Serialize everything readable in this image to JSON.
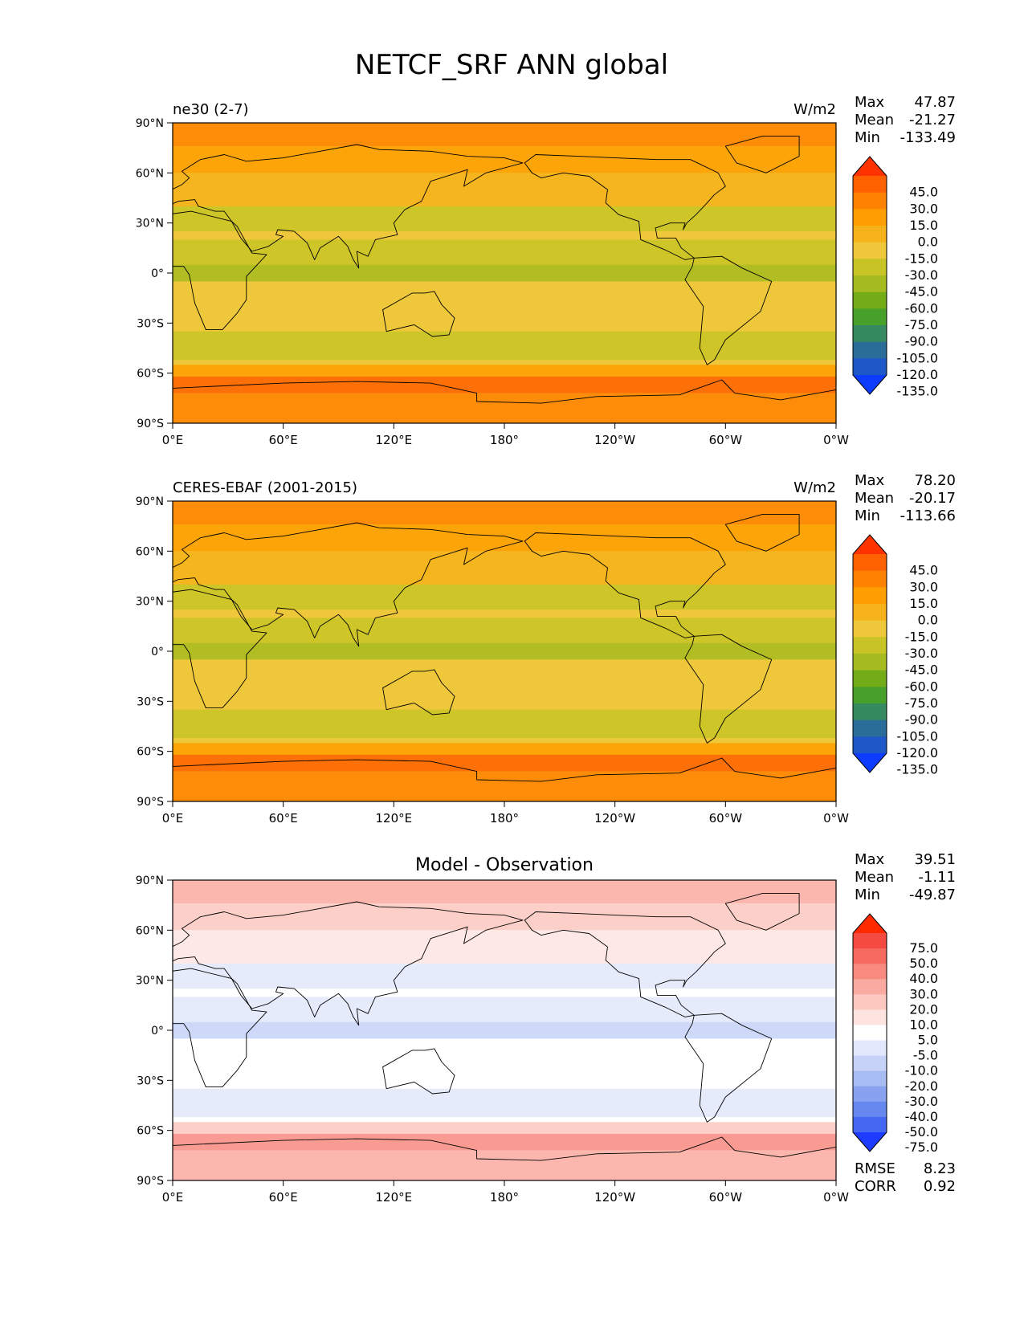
{
  "figure": {
    "title": "NETCF_SRF ANN global",
    "axes": {
      "lat_ticks": [
        "90°N",
        "60°N",
        "30°N",
        "0°",
        "30°S",
        "60°S",
        "90°S"
      ],
      "lon_ticks": [
        "0°E",
        "60°E",
        "120°E",
        "180°",
        "120°W",
        "60°W",
        "0°W"
      ]
    },
    "panels": [
      {
        "name": "model",
        "label_left": "ne30 (2-7)",
        "label_center": "",
        "units": "W/m2",
        "stats": [
          {
            "label": "Max",
            "value": "47.87"
          },
          {
            "label": "Mean",
            "value": "-21.27"
          },
          {
            "label": "Min",
            "value": "-133.49"
          }
        ],
        "colorbar": {
          "levels": [
            "45.0",
            "30.0",
            "15.0",
            "0.0",
            "-15.0",
            "-30.0",
            "-45.0",
            "-60.0",
            "-75.0",
            "-90.0",
            "-105.0",
            "-120.0",
            "-135.0"
          ],
          "colors": [
            "#ff3300",
            "#ff6000",
            "#ff8200",
            "#ff9e00",
            "#f6b21a",
            "#eec83a",
            "#c8c426",
            "#a6bb20",
            "#74ac18",
            "#46a02a",
            "#358a60",
            "#2a6d98",
            "#1e58c8",
            "#0d3cff"
          ]
        },
        "palette": [
          "#ff3300",
          "#ff6000",
          "#ff8200",
          "#ff9e00",
          "#f6b21a",
          "#eec83a",
          "#c8c426",
          "#a6bb20",
          "#74ac18"
        ],
        "footer": []
      },
      {
        "name": "observation",
        "label_left": "CERES-EBAF (2001-2015)",
        "label_center": "",
        "units": "W/m2",
        "stats": [
          {
            "label": "Max",
            "value": "78.20"
          },
          {
            "label": "Mean",
            "value": "-20.17"
          },
          {
            "label": "Min",
            "value": "-113.66"
          }
        ],
        "colorbar": {
          "levels": [
            "45.0",
            "30.0",
            "15.0",
            "0.0",
            "-15.0",
            "-30.0",
            "-45.0",
            "-60.0",
            "-75.0",
            "-90.0",
            "-105.0",
            "-120.0",
            "-135.0"
          ],
          "colors": [
            "#ff3300",
            "#ff6000",
            "#ff8200",
            "#ff9e00",
            "#f6b21a",
            "#eec83a",
            "#c8c426",
            "#a6bb20",
            "#74ac18",
            "#46a02a",
            "#358a60",
            "#2a6d98",
            "#1e58c8",
            "#0d3cff"
          ]
        },
        "palette": [
          "#ff3300",
          "#ff6000",
          "#ff8200",
          "#ff9e00",
          "#f6b21a",
          "#eec83a",
          "#c8c426",
          "#a6bb20",
          "#74ac18"
        ],
        "footer": []
      },
      {
        "name": "difference",
        "label_left": "",
        "label_center": "Model - Observation",
        "units": "",
        "stats": [
          {
            "label": "Max",
            "value": "39.51"
          },
          {
            "label": "Mean",
            "value": "-1.11"
          },
          {
            "label": "Min",
            "value": "-49.87"
          }
        ],
        "colorbar": {
          "levels": [
            "75.0",
            "50.0",
            "40.0",
            "30.0",
            "20.0",
            "10.0",
            "5.0",
            "-5.0",
            "-10.0",
            "-20.0",
            "-30.0",
            "-40.0",
            "-50.0",
            "-75.0"
          ],
          "colors": [
            "#ff2a00",
            "#f44a40",
            "#f66a60",
            "#f88a80",
            "#faaaa0",
            "#fcc8c0",
            "#fee4e0",
            "#ffffff",
            "#e2e8fc",
            "#c6d2f8",
            "#a8bcf4",
            "#88a2f0",
            "#6688ee",
            "#4468f2",
            "#1e3cff"
          ]
        },
        "palette": [
          "#f66a60",
          "#f88a80",
          "#faaaa0",
          "#fcc8c0",
          "#fee4e0",
          "#ffffff",
          "#e2e8fc",
          "#c6d2f8",
          "#a8bcf4"
        ],
        "footer": [
          {
            "label": "RMSE",
            "value": "8.23"
          },
          {
            "label": "CORR",
            "value": "0.92"
          }
        ]
      }
    ]
  }
}
